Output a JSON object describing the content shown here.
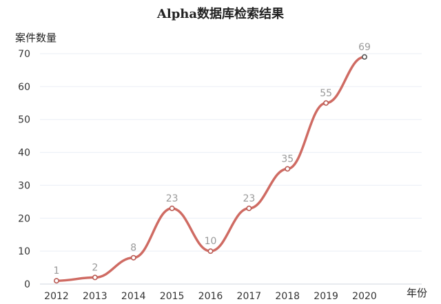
{
  "chart_data": {
    "type": "line",
    "title": "Alpha数据库检索结果",
    "ylabel": "案件数量",
    "xlabel": "年份",
    "categories": [
      "2012",
      "2013",
      "2014",
      "2015",
      "2016",
      "2017",
      "2018",
      "2019",
      "2020"
    ],
    "series": [
      {
        "values": [
          1,
          2,
          8,
          23,
          10,
          23,
          35,
          55,
          69
        ]
      }
    ],
    "data_labels": [
      "1",
      "2",
      "8",
      "23",
      "10",
      "23",
      "35",
      "55",
      "69"
    ],
    "yticks": [
      "0",
      "10",
      "20",
      "30",
      "40",
      "50",
      "60",
      "70"
    ],
    "ylim": [
      0,
      70
    ],
    "grid": true,
    "smooth": true,
    "legend": "none",
    "colors": {
      "line": "#cf6b63",
      "point_stroke": "#b95a53",
      "last_point_stroke": "#555555"
    }
  }
}
